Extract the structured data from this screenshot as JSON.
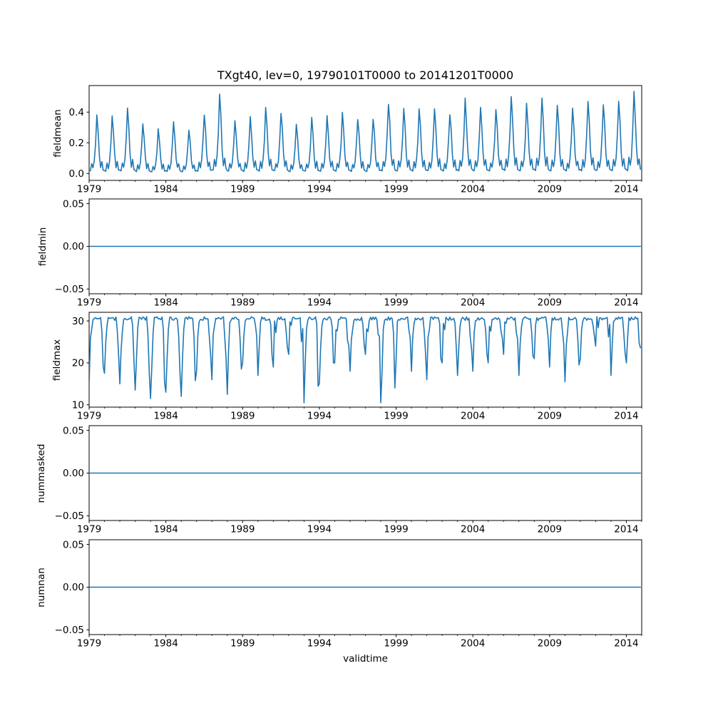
{
  "figure": {
    "title": "TXgt40, lev=0, 19790101T0000 to 20141201T0000",
    "xlabel": "validtime",
    "background": "#ffffff",
    "line_color": "#1f77b4",
    "axis_color": "#000000",
    "x_range": [
      1979,
      2015
    ],
    "x_ticks": [
      1979,
      1984,
      1989,
      1994,
      1999,
      2004,
      2009,
      2014
    ],
    "x_minor_step_years": 1,
    "years": [
      1979,
      1980,
      1981,
      1982,
      1983,
      1984,
      1985,
      1986,
      1987,
      1988,
      1989,
      1990,
      1991,
      1992,
      1993,
      1994,
      1995,
      1996,
      1997,
      1998,
      1999,
      2000,
      2001,
      2002,
      2003,
      2004,
      2005,
      2006,
      2007,
      2008,
      2009,
      2010,
      2011,
      2012,
      2013,
      2014
    ]
  },
  "chart_data": [
    {
      "type": "line",
      "name": "fieldmean",
      "ylabel": "fieldmean",
      "ylim": [
        -0.045,
        0.573
      ],
      "ytick_values": [
        0.0,
        0.2,
        0.4
      ],
      "ytick_labels": [
        "0.0",
        "0.2",
        "0.4"
      ],
      "cadence": "monthly",
      "series_model": "seasonal_peaks",
      "monthly_shape": [
        0.05,
        0.04,
        0.18,
        0.09,
        0.22,
        0.52,
        1.0,
        0.72,
        0.3,
        0.11,
        0.2,
        0.06
      ],
      "annual_peaks": [
        0.38,
        0.38,
        0.42,
        0.33,
        0.29,
        0.33,
        0.29,
        0.39,
        0.52,
        0.35,
        0.37,
        0.42,
        0.4,
        0.32,
        0.36,
        0.37,
        0.4,
        0.35,
        0.36,
        0.46,
        0.42,
        0.42,
        0.43,
        0.39,
        0.48,
        0.43,
        0.42,
        0.51,
        0.46,
        0.5,
        0.44,
        0.42,
        0.47,
        0.45,
        0.48,
        0.53
      ],
      "jitter": 0.25,
      "min_value": 0.004
    },
    {
      "type": "line",
      "name": "fieldmin",
      "ylabel": "fieldmin",
      "ylim": [
        -0.0555,
        0.0555
      ],
      "ytick_values": [
        -0.05,
        0.0,
        0.05
      ],
      "ytick_labels": [
        "−0.05",
        "0.00",
        "0.05"
      ],
      "cadence": "monthly",
      "series_model": "constant",
      "constant_value": 0.0
    },
    {
      "type": "line",
      "name": "fieldmax",
      "ylabel": "fieldmax",
      "ylim": [
        9.45,
        32.05
      ],
      "ytick_values": [
        10,
        20,
        30
      ],
      "ytick_labels": [
        "10",
        "20",
        "30"
      ],
      "cadence": "monthly",
      "series_model": "capped_winter_dips",
      "cap": 31,
      "winter_minima": [
        15,
        17.5,
        15,
        13.5,
        11.5,
        13,
        12,
        18,
        16,
        12.5,
        20,
        17,
        19,
        22,
        10.5,
        15,
        20,
        18,
        22,
        10.5,
        21,
        18,
        16,
        20,
        17,
        18,
        20,
        22,
        17,
        21,
        19,
        15.5,
        21,
        24,
        17,
        20
      ]
    },
    {
      "type": "line",
      "name": "nummasked",
      "ylabel": "nummasked",
      "ylim": [
        -0.0555,
        0.0555
      ],
      "ytick_values": [
        -0.05,
        0.0,
        0.05
      ],
      "ytick_labels": [
        "−0.05",
        "0.00",
        "0.05"
      ],
      "cadence": "monthly",
      "series_model": "constant",
      "constant_value": 0.0
    },
    {
      "type": "line",
      "name": "numnan",
      "ylabel": "numnan",
      "ylim": [
        -0.0555,
        0.0555
      ],
      "ytick_values": [
        -0.05,
        0.0,
        0.05
      ],
      "ytick_labels": [
        "−0.05",
        "0.00",
        "0.05"
      ],
      "cadence": "monthly",
      "series_model": "constant",
      "constant_value": 0.0
    }
  ]
}
